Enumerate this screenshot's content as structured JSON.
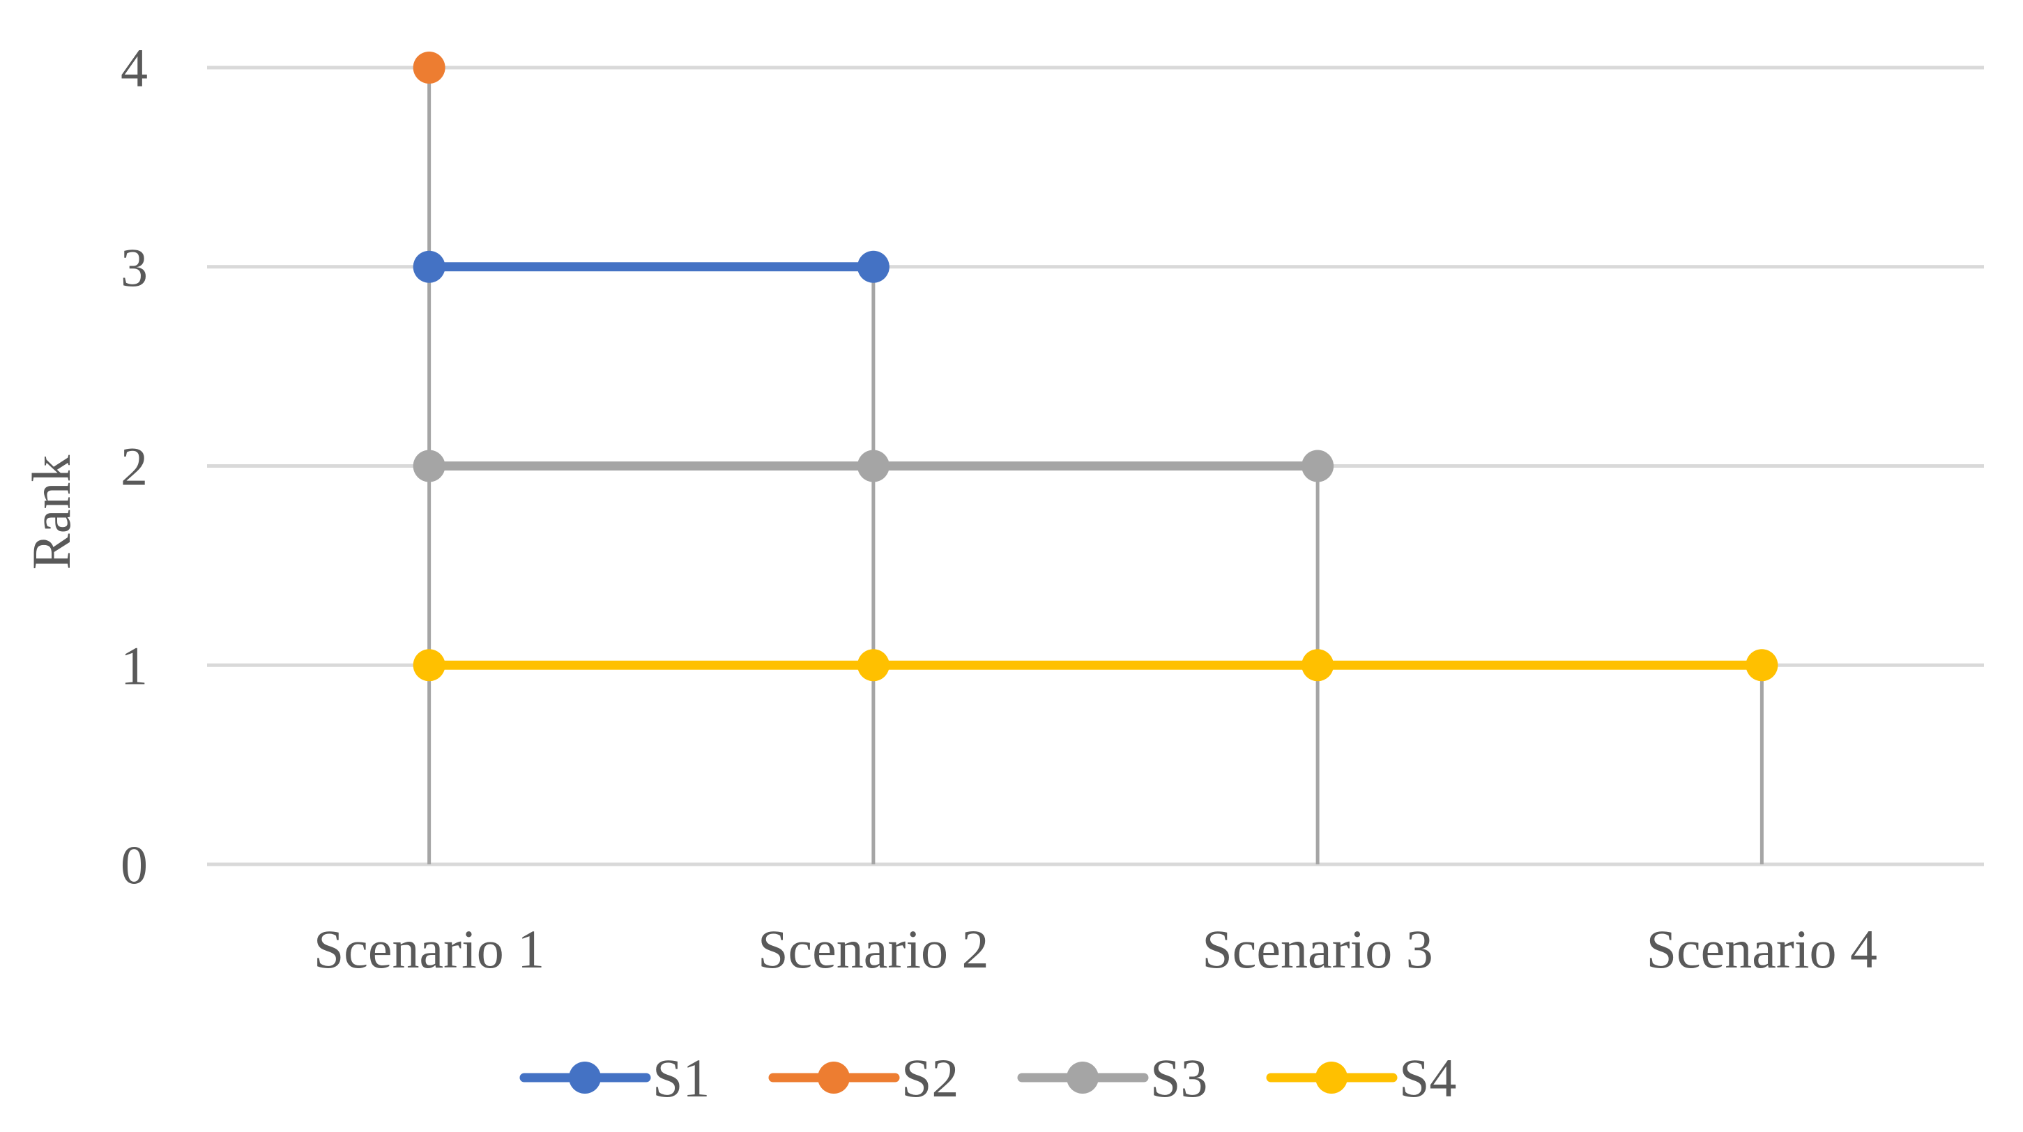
{
  "chart_data": {
    "type": "line",
    "title": "",
    "xlabel": "",
    "ylabel": "Rank",
    "categories": [
      "Scenario 1",
      "Scenario 2",
      "Scenario 3",
      "Scenario 4"
    ],
    "ylim": [
      0,
      4
    ],
    "yticks": [
      "0",
      "1",
      "2",
      "3",
      "4"
    ],
    "grid": true,
    "drop_lines": true,
    "legend_position": "bottom",
    "series": [
      {
        "name": "S1",
        "color": "#4472C4",
        "values": [
          3,
          3,
          null,
          null
        ]
      },
      {
        "name": "S2",
        "color": "#ED7D31",
        "values": [
          4,
          null,
          null,
          null
        ]
      },
      {
        "name": "S3",
        "color": "#A5A5A5",
        "values": [
          2,
          2,
          2,
          null
        ]
      },
      {
        "name": "S4",
        "color": "#FFC000",
        "values": [
          1,
          1,
          1,
          1
        ]
      }
    ],
    "colors": {
      "grid": "#D9D9D9",
      "drop_line": "#A5A5A5",
      "text": "#595959"
    }
  }
}
